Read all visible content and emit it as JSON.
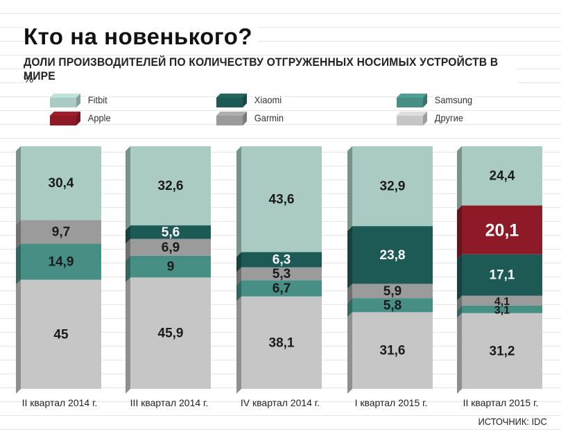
{
  "title": "Кто на новенького?",
  "subtitle": "ДОЛИ ПРОИЗВОДИТЕЛЕЙ ПО КОЛИЧЕСТВУ ОТГРУЖЕННЫХ НОСИМЫХ УСТРОЙСТВ В МИРЕ",
  "unit": "%",
  "source": "ИСТОЧНИК: IDC",
  "colors": {
    "Fitbit": "#a9cbc3",
    "Xiaomi": "#1e5a55",
    "Samsung": "#478e85",
    "Apple": "#8f1a27",
    "Garmin": "#9b9b9b",
    "Другие": "#c6c6c6"
  },
  "legend": [
    {
      "name": "Fitbit"
    },
    {
      "name": "Xiaomi"
    },
    {
      "name": "Samsung"
    },
    {
      "name": "Apple"
    },
    {
      "name": "Garmin"
    },
    {
      "name": "Другие"
    }
  ],
  "chart_data": {
    "type": "bar",
    "stacked": true,
    "title": "Кто на новенького?",
    "subtitle": "ДОЛИ ПРОИЗВОДИТЕЛЕЙ ПО КОЛИЧЕСТВУ ОТГРУЖЕННЫХ НОСИМЫХ УСТРОЙСТВ В МИРЕ",
    "ylabel": "%",
    "ylim": [
      0,
      100
    ],
    "legend_position": "top",
    "categories": [
      "II квартал 2014 г.",
      "III квартал 2014 г.",
      "IV квартал 2014 г.",
      "I квартал 2015 г.",
      "II квартал 2015 г."
    ],
    "stack_order_bottom_to_top": [
      "Другие",
      "Samsung",
      "Garmin",
      "Xiaomi",
      "Apple",
      "Fitbit"
    ],
    "series": [
      {
        "name": "Другие",
        "values": [
          45,
          45.9,
          38.1,
          31.6,
          31.2
        ],
        "labels": [
          "45",
          "45,9",
          "38,1",
          "31,6",
          "31,2"
        ]
      },
      {
        "name": "Samsung",
        "values": [
          14.9,
          9,
          6.7,
          5.8,
          3.1
        ],
        "labels": [
          "14,9",
          "9",
          "6,7",
          "5,8",
          "3,1"
        ]
      },
      {
        "name": "Garmin",
        "values": [
          9.7,
          6.9,
          5.3,
          5.9,
          4.1
        ],
        "labels": [
          "9,7",
          "6,9",
          "5,3",
          "5,9",
          "4,1"
        ]
      },
      {
        "name": "Xiaomi",
        "values": [
          null,
          5.6,
          6.3,
          23.8,
          17.1
        ],
        "labels": [
          "",
          "5,6",
          "6,3",
          "23,8",
          "17,1"
        ]
      },
      {
        "name": "Apple",
        "values": [
          null,
          null,
          null,
          null,
          20.1
        ],
        "labels": [
          "",
          "",
          "",
          "",
          "20,1"
        ]
      },
      {
        "name": "Fitbit",
        "values": [
          30.4,
          32.6,
          43.6,
          32.9,
          24.4
        ],
        "labels": [
          "30,4",
          "32,6",
          "43,6",
          "32,9",
          "24,4"
        ]
      }
    ]
  }
}
